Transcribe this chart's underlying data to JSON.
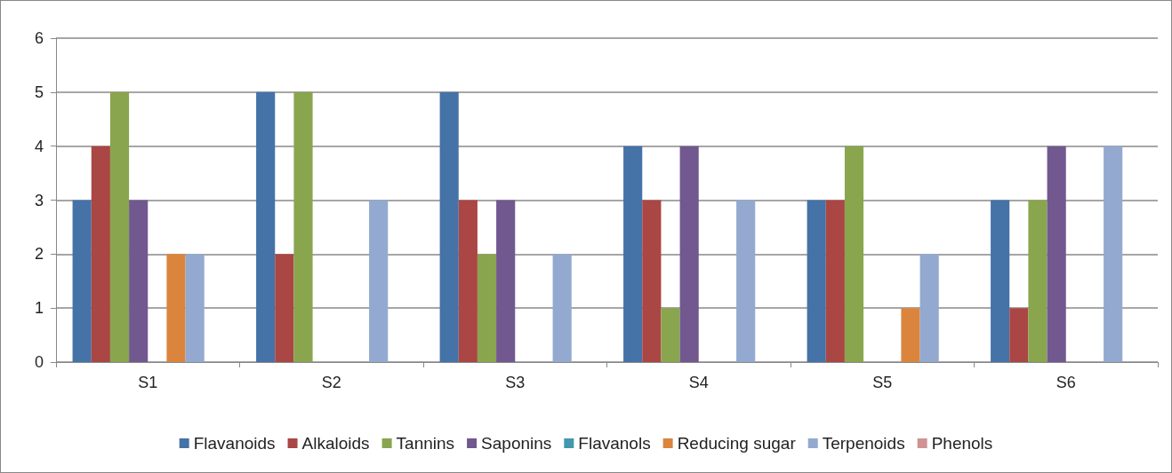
{
  "chart_data": {
    "type": "bar",
    "categories": [
      "S1",
      "S2",
      "S3",
      "S4",
      "S5",
      "S6"
    ],
    "series": [
      {
        "name": "Flavanoids",
        "color": "#4572a7",
        "values": [
          3,
          5,
          5,
          4,
          3,
          3
        ]
      },
      {
        "name": "Alkaloids",
        "color": "#aa4643",
        "values": [
          4,
          2,
          3,
          3,
          3,
          1
        ]
      },
      {
        "name": "Tannins",
        "color": "#89a54e",
        "values": [
          5,
          5,
          2,
          1,
          4,
          3
        ]
      },
      {
        "name": "Saponins",
        "color": "#71588f",
        "values": [
          3,
          0,
          3,
          4,
          0,
          4
        ]
      },
      {
        "name": "Flavanols",
        "color": "#4198af",
        "values": [
          0,
          0,
          0,
          0,
          0,
          0
        ]
      },
      {
        "name": "Reducing sugar",
        "color": "#db843d",
        "values": [
          2,
          0,
          0,
          0,
          1,
          0
        ]
      },
      {
        "name": "Terpenoids",
        "color": "#93a9cf",
        "values": [
          2,
          3,
          2,
          3,
          2,
          4
        ]
      },
      {
        "name": "Phenols",
        "color": "#d19392",
        "values": [
          0,
          0,
          0,
          0,
          0,
          0
        ]
      }
    ],
    "ylim": [
      0,
      6
    ],
    "yticks": [
      0,
      1,
      2,
      3,
      4,
      5,
      6
    ],
    "grid": "y",
    "legend": "bottom"
  }
}
